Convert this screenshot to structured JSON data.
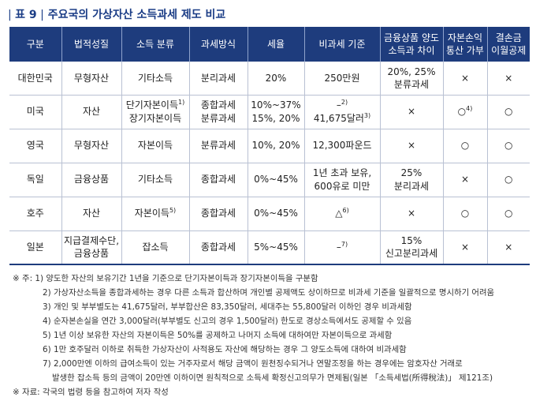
{
  "title": {
    "tag": "표 9",
    "text": "주요국의 가상자산 소득과세 제도 비교"
  },
  "table": {
    "headers": [
      "구분",
      "법적성질",
      "소득 분류",
      "과세방식",
      "세율",
      "비과세 기준",
      "금융상품 양도\n소득과 차이",
      "자본손익\n통산 가부",
      "결손금\n이월공제"
    ],
    "rows": [
      {
        "country": "대한민국",
        "legal": "무형자산",
        "income": [
          "기타소득"
        ],
        "income_sup": [
          "",
          ""
        ],
        "method": [
          "분리과세"
        ],
        "rate": [
          "20%"
        ],
        "exempt": [
          "250만원"
        ],
        "exempt_sup": [
          "",
          ""
        ],
        "diff": "20%, 25%\n분류과세",
        "offset": "×",
        "offset_sup": "",
        "carry": "×"
      },
      {
        "country": "미국",
        "legal": "자산",
        "income": [
          "단기자본이득",
          "장기자본이득"
        ],
        "income_sup": [
          "1)",
          ""
        ],
        "method": [
          "종합과세",
          "분류과세"
        ],
        "rate": [
          "10%~37%",
          "15%, 20%"
        ],
        "exempt": [
          "–",
          "41,675달러"
        ],
        "exempt_sup": [
          "2)",
          "3)"
        ],
        "diff": "×",
        "offset": "○",
        "offset_sup": "4)",
        "carry": "○"
      },
      {
        "country": "영국",
        "legal": "무형자산",
        "income": [
          "자본이득"
        ],
        "income_sup": [
          "",
          ""
        ],
        "method": [
          "분류과세"
        ],
        "rate": [
          "10%, 20%"
        ],
        "exempt": [
          "12,300파운드"
        ],
        "exempt_sup": [
          "",
          ""
        ],
        "diff": "×",
        "offset": "○",
        "offset_sup": "",
        "carry": "○"
      },
      {
        "country": "독일",
        "legal": "금융상품",
        "income": [
          "기타소득"
        ],
        "income_sup": [
          "",
          ""
        ],
        "method": [
          "종합과세"
        ],
        "rate": [
          "0%~45%"
        ],
        "exempt": [
          "1년 초과 보유,",
          "600유로 미만"
        ],
        "exempt_sup": [
          "",
          ""
        ],
        "diff": "25%\n분리과세",
        "offset": "×",
        "offset_sup": "",
        "carry": "○"
      },
      {
        "country": "호주",
        "legal": "자산",
        "income": [
          "자본이득"
        ],
        "income_sup": [
          "5)",
          ""
        ],
        "method": [
          "종합과세"
        ],
        "rate": [
          "0%~45%"
        ],
        "exempt": [
          "△"
        ],
        "exempt_sup": [
          "6)",
          ""
        ],
        "diff": "×",
        "offset": "○",
        "offset_sup": "",
        "carry": "○"
      },
      {
        "country": "일본",
        "legal": "지급결제수단,\n금융상품",
        "income": [
          "잡소득"
        ],
        "income_sup": [
          "",
          ""
        ],
        "method": [
          "종합과세"
        ],
        "rate": [
          "5%~45%"
        ],
        "exempt": [
          "–"
        ],
        "exempt_sup": [
          "7)",
          ""
        ],
        "diff": "15%\n신고분리과세",
        "offset": "×",
        "offset_sup": "",
        "carry": "×"
      }
    ]
  },
  "notes": {
    "head": "※ 주: 1) 양도한 자산의 보유기간 1년을 기준으로 단기자본이득과 장기자본이득을 구분함",
    "lines": [
      "2) 가상자산소득을 종합과세하는 경우 다른 소득과 합산하며 개인별 공제액도 상이하므로 비과세 기준을 일괄적으로 명시하기 어려움",
      "3) 개인 및 부부별도는 41,675달러, 부부합산은 83,350달러, 세대주는 55,800달러 이하인 경우 비과세함",
      "4) 순자본손실을 연간 3,000달러(부부별도 신고의 경우 1,500달러) 한도로 경상소득에서도 공제할 수 있음",
      "5) 1년 이상 보유한 자산의 자본이득은 50%를 공제하고 나머지 소득에 대하여만 자본이득으로 과세함",
      "6) 1만 호주달러 이하로 취득한 가상자산이 사적용도 자산에 해당하는 경우 그 양도소득에 대하여 비과세함",
      "7) 2,000만엔 이하의 급여소득이 있는 거주자로서 해당 금액이 원천징수되거나 연말조정을 하는 경우에는 암호자산 거래로"
    ],
    "cont": "발생한 잡소득 등의 금액이 20만엔 이하이면 원칙적으로 소득세 확정신고의무가 면제됨(일본 「소득세법(所得稅法)」 제121조)",
    "source": "※ 자료: 각국의 법령 등을 참고하여 저자 작성"
  }
}
